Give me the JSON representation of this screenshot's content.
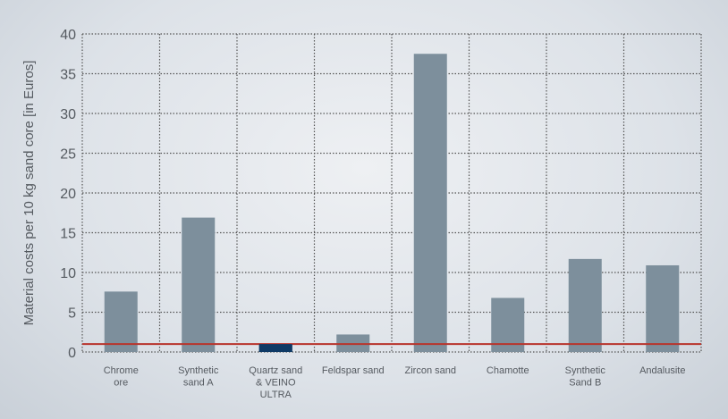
{
  "chart_data": {
    "type": "bar",
    "title": "",
    "xlabel": "",
    "ylabel": "Material costs per 10 kg sand core [in Euros]",
    "ylim": [
      0,
      40
    ],
    "yticks": [
      "0",
      "5",
      "10",
      "15",
      "20",
      "25",
      "30",
      "35",
      "40"
    ],
    "grid": true,
    "categories": [
      [
        "Chrome",
        "ore"
      ],
      [
        "Synthetic",
        "sand A"
      ],
      [
        "Quartz sand",
        "& VEINO",
        "ULTRA"
      ],
      [
        "Feldspar sand"
      ],
      [
        "Zircon sand"
      ],
      [
        "Chamotte"
      ],
      [
        "Synthetic",
        "Sand B"
      ],
      [
        "Andalusite"
      ]
    ],
    "values": [
      7.6,
      16.9,
      1.0,
      2.2,
      37.5,
      6.8,
      11.7,
      10.9
    ],
    "highlight_index": 2,
    "reference_line": 1.0,
    "colors": {
      "bar": "#7d8f9c",
      "highlight": "#0e3a66",
      "reference_line": "#b8342c",
      "grid": "#555555",
      "text": "#555a60"
    }
  }
}
